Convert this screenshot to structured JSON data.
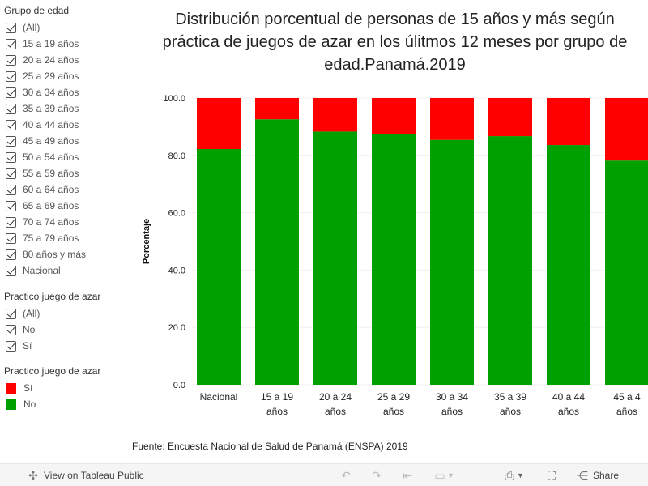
{
  "filters": {
    "age_group": {
      "title": "Grupo de edad",
      "options": [
        "(All)",
        "15 a 19 años",
        "20 a 24 años",
        "25 a 29 años",
        "30 a 34 años",
        "35 a 39 años",
        "40 a 44 años",
        "45 a 49 años",
        "50 a 54 años",
        "55 a 59 años",
        "60 a 64 años",
        "65 a 69 años",
        "70 a 74 años",
        "75 a 79 años",
        "80 años y más",
        "Nacional"
      ]
    },
    "gambling": {
      "title": "Practico juego de azar",
      "options": [
        "(All)",
        "No",
        "Sí"
      ]
    }
  },
  "legend": {
    "title": "Practico juego de azar",
    "items": [
      {
        "label": "Sí",
        "color": "#ff0000"
      },
      {
        "label": "No",
        "color": "#00a000"
      }
    ]
  },
  "chart_data": {
    "type": "bar",
    "stacked": true,
    "title_lines": [
      "Distribución porcentual de personas de 15 años y más según",
      "práctica de juegos de azar en los úlitmos 12 meses por grupo de",
      "edad.Panamá.2019"
    ],
    "ylabel": "Porcentaje",
    "ylim": [
      0,
      100
    ],
    "yticks": [
      "0.0",
      "20.0",
      "40.0",
      "60.0",
      "80.0",
      "100.0"
    ],
    "categories": [
      [
        "Nacional"
      ],
      [
        "15 a 19",
        "años"
      ],
      [
        "20 a 24",
        "años"
      ],
      [
        "25 a 29",
        "años"
      ],
      [
        "30 a 34",
        "años"
      ],
      [
        "35 a 39",
        "años"
      ],
      [
        "40 a 44",
        "años"
      ],
      [
        "45 a 4",
        "años"
      ]
    ],
    "series": [
      {
        "name": "No",
        "color": "#00a000",
        "values": [
          82.2,
          92.6,
          88.3,
          87.4,
          85.4,
          86.7,
          83.6,
          78.2
        ]
      },
      {
        "name": "Sí",
        "color": "#ff0000",
        "values": [
          17.8,
          7.4,
          11.7,
          12.6,
          14.6,
          13.3,
          16.4,
          21.8
        ]
      }
    ]
  },
  "source_text": "Fuente: Encuesta Nacional de Salud de Panamá (ENSPA) 2019",
  "toolbar": {
    "view_label": "View on Tableau Public",
    "share_label": "Share"
  }
}
